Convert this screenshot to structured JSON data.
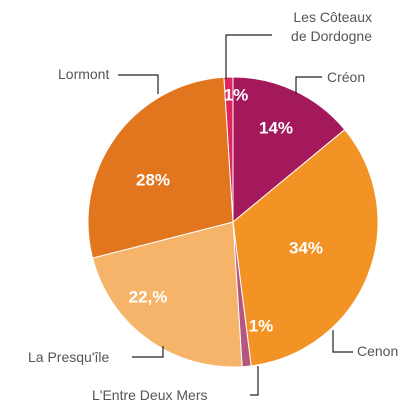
{
  "chart_data": {
    "type": "pie",
    "categories": [
      "Les Côteaux de Dordogne",
      "Créon",
      "Cenon",
      "L'Entre Deux Mers",
      "La Presqu'île",
      "Lormont"
    ],
    "values": [
      1,
      14,
      34,
      1,
      22,
      28
    ],
    "value_labels": [
      "1%",
      "14%",
      "34%",
      "1%",
      "22,%",
      "28%"
    ],
    "colors": [
      "#e0245e",
      "#a3195b",
      "#f39325",
      "#b4577e",
      "#f5b46a",
      "#e2761f"
    ]
  }
}
